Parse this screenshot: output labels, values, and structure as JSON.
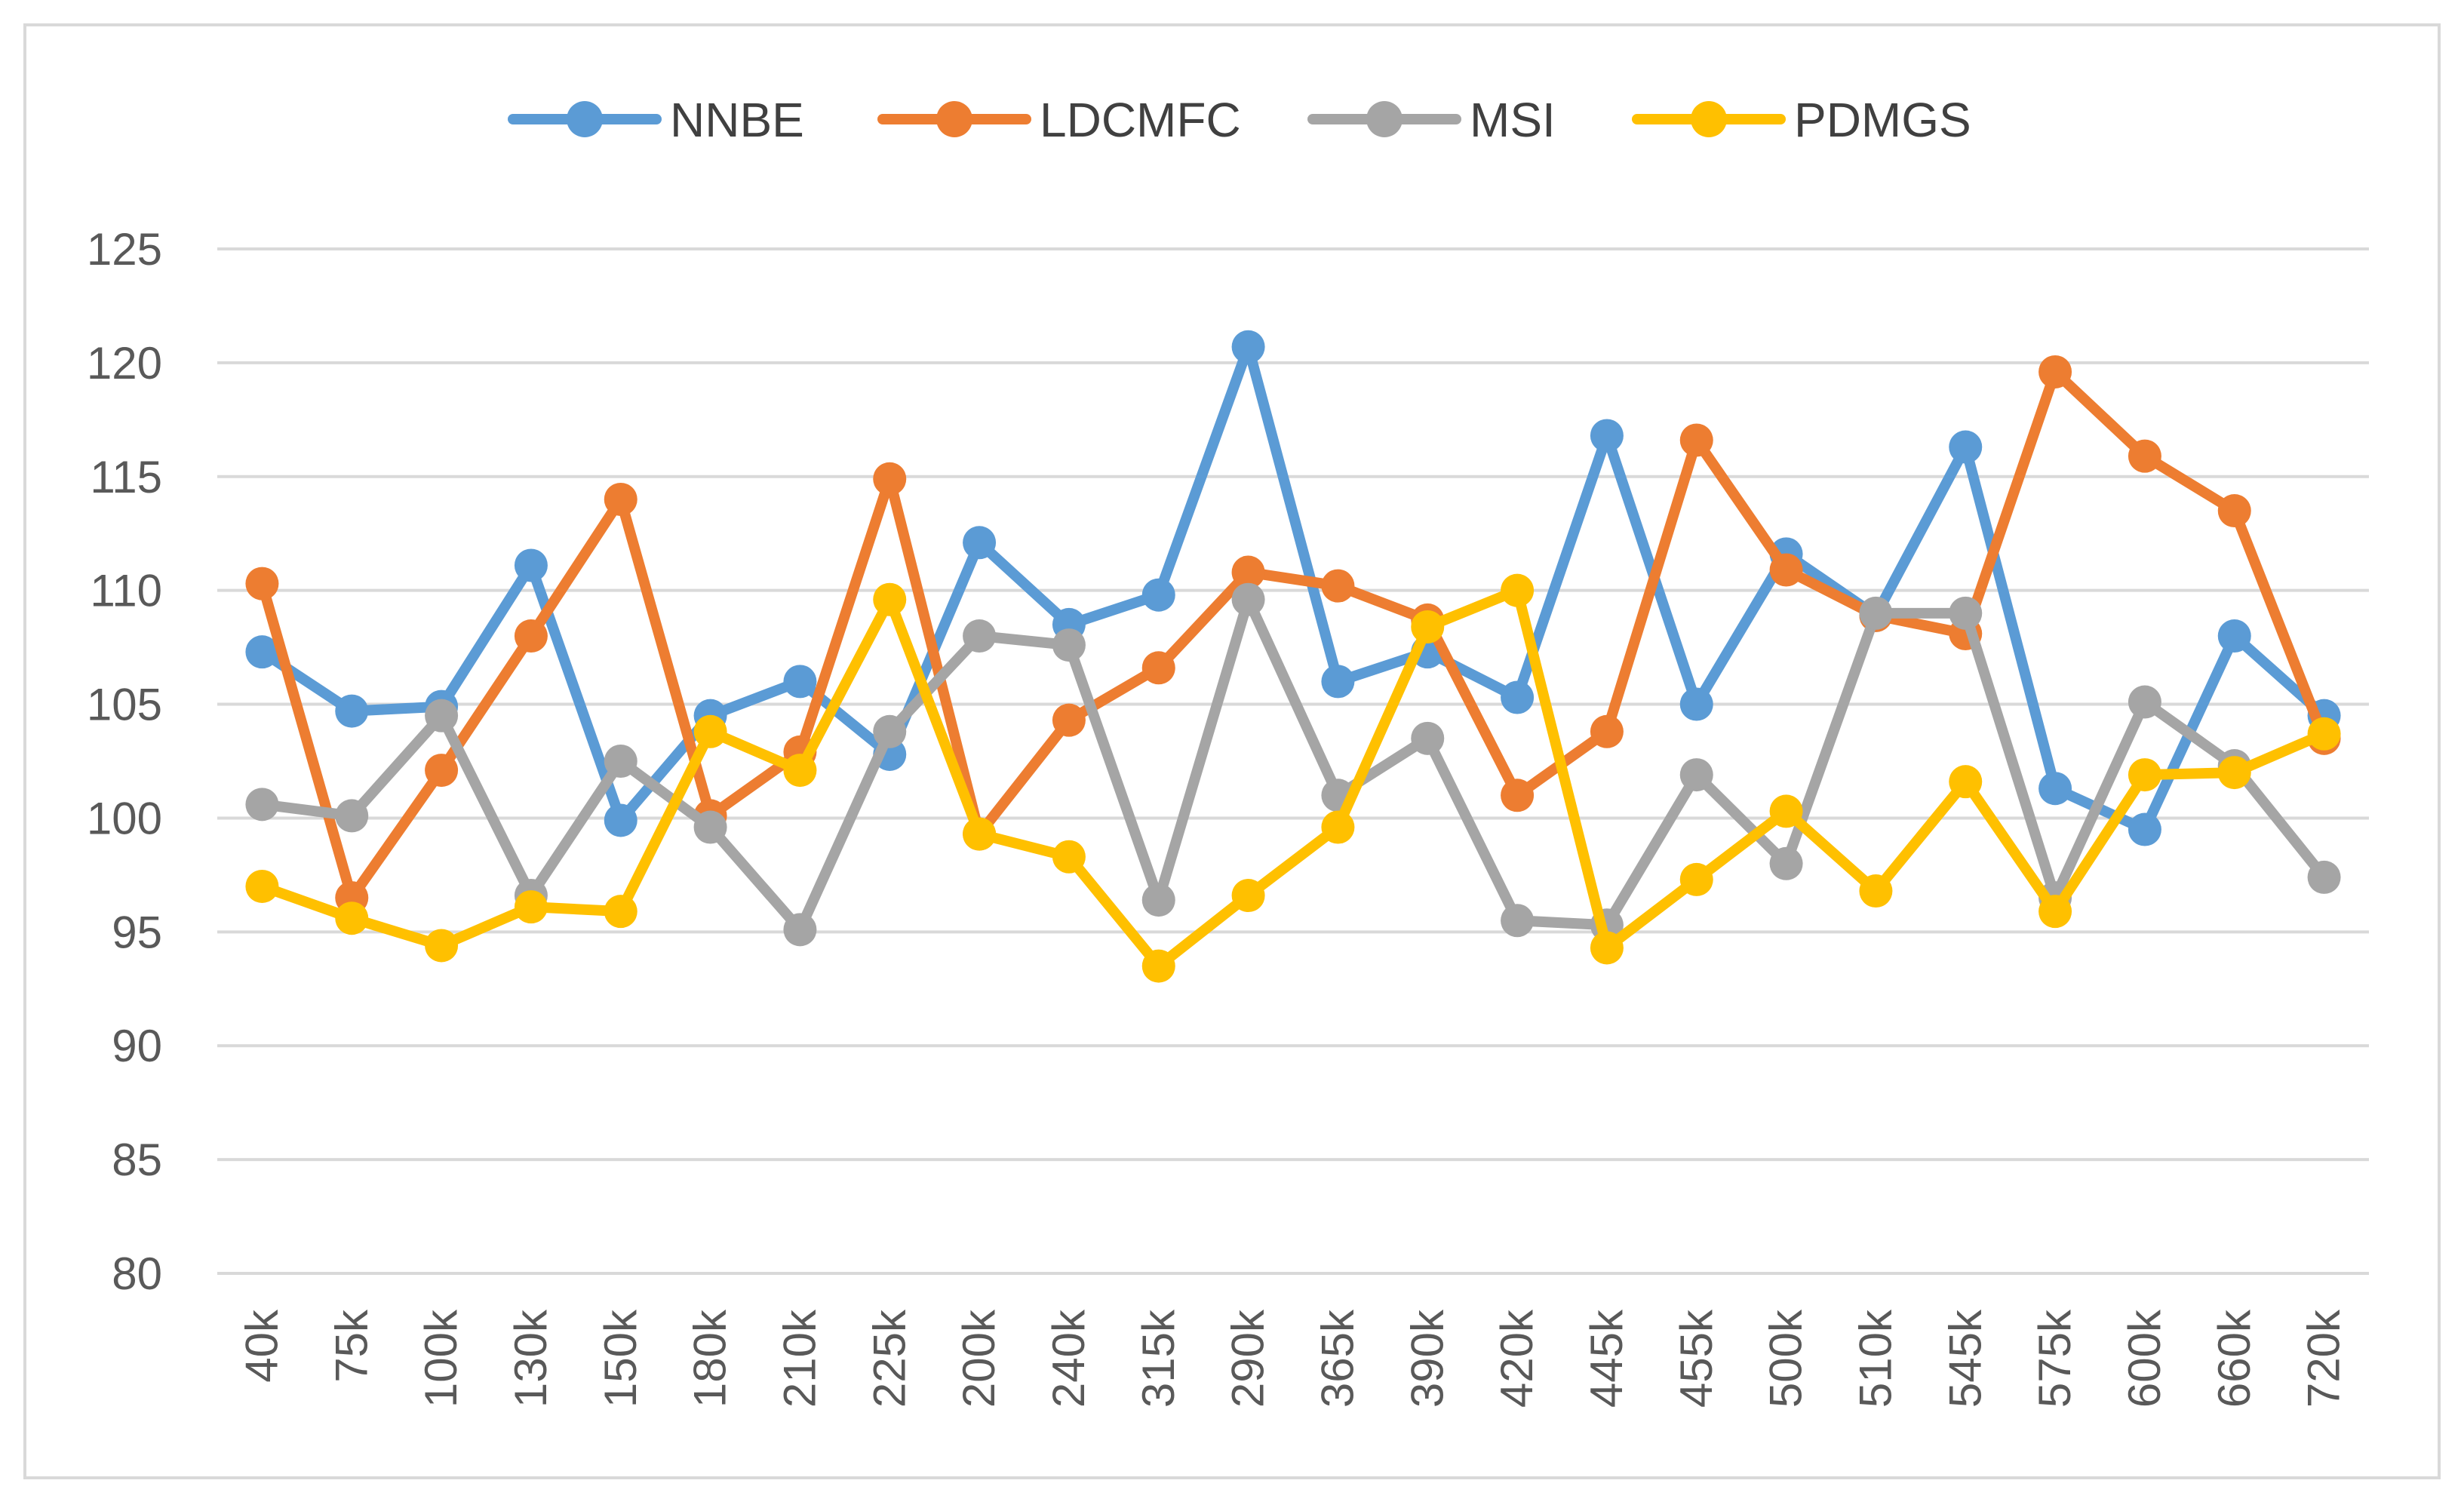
{
  "chart_data": {
    "type": "line",
    "title": "",
    "xlabel": "",
    "ylabel": "",
    "ylim": [
      80,
      125
    ],
    "yticks": [
      80,
      85,
      90,
      95,
      100,
      105,
      110,
      115,
      120,
      125
    ],
    "grid": true,
    "legend_position": "top",
    "categories": [
      "40k",
      "75k",
      "100k",
      "130k",
      "150k",
      "180k",
      "210k",
      "225k",
      "200k",
      "240k",
      "315k",
      "290k",
      "365k",
      "390k",
      "420k",
      "445k",
      "455k",
      "500k",
      "510k",
      "545k",
      "575k",
      "600k",
      "660k",
      "720k"
    ],
    "series": [
      {
        "name": "NNBE",
        "color": "#5B9BD5",
        "values": [
          107.3,
          104.7,
          104.9,
          111.1,
          99.9,
          104.5,
          106.0,
          102.8,
          112.1,
          108.5,
          109.8,
          120.7,
          106.0,
          107.3,
          105.3,
          116.8,
          105.0,
          111.6,
          108.9,
          116.3,
          101.3,
          99.5,
          108.0,
          104.5
        ]
      },
      {
        "name": "LDCMFC",
        "color": "#ED7D31",
        "values": [
          110.3,
          96.5,
          102.1,
          108.0,
          114.0,
          100.1,
          102.9,
          114.9,
          99.3,
          104.3,
          106.6,
          110.8,
          110.2,
          108.7,
          101.0,
          103.8,
          116.6,
          110.9,
          108.9,
          108.1,
          119.6,
          115.9,
          113.5,
          103.5
        ]
      },
      {
        "name": "MSI",
        "color": "#A5A5A5",
        "values": [
          100.6,
          100.1,
          104.5,
          96.6,
          102.5,
          99.6,
          95.1,
          103.8,
          108.0,
          107.6,
          96.4,
          109.6,
          101.0,
          103.5,
          95.5,
          95.3,
          101.9,
          98.0,
          109.0,
          109.0,
          96.5,
          105.1,
          102.3,
          97.4
        ]
      },
      {
        "name": "PDMGS",
        "color": "#FFC000",
        "values": [
          97.0,
          95.6,
          94.4,
          96.1,
          95.9,
          103.8,
          102.1,
          109.6,
          99.3,
          98.3,
          93.5,
          96.6,
          99.6,
          108.4,
          110.0,
          94.3,
          97.3,
          100.3,
          96.8,
          101.6,
          95.9,
          101.9,
          102.0,
          103.7
        ]
      }
    ]
  }
}
